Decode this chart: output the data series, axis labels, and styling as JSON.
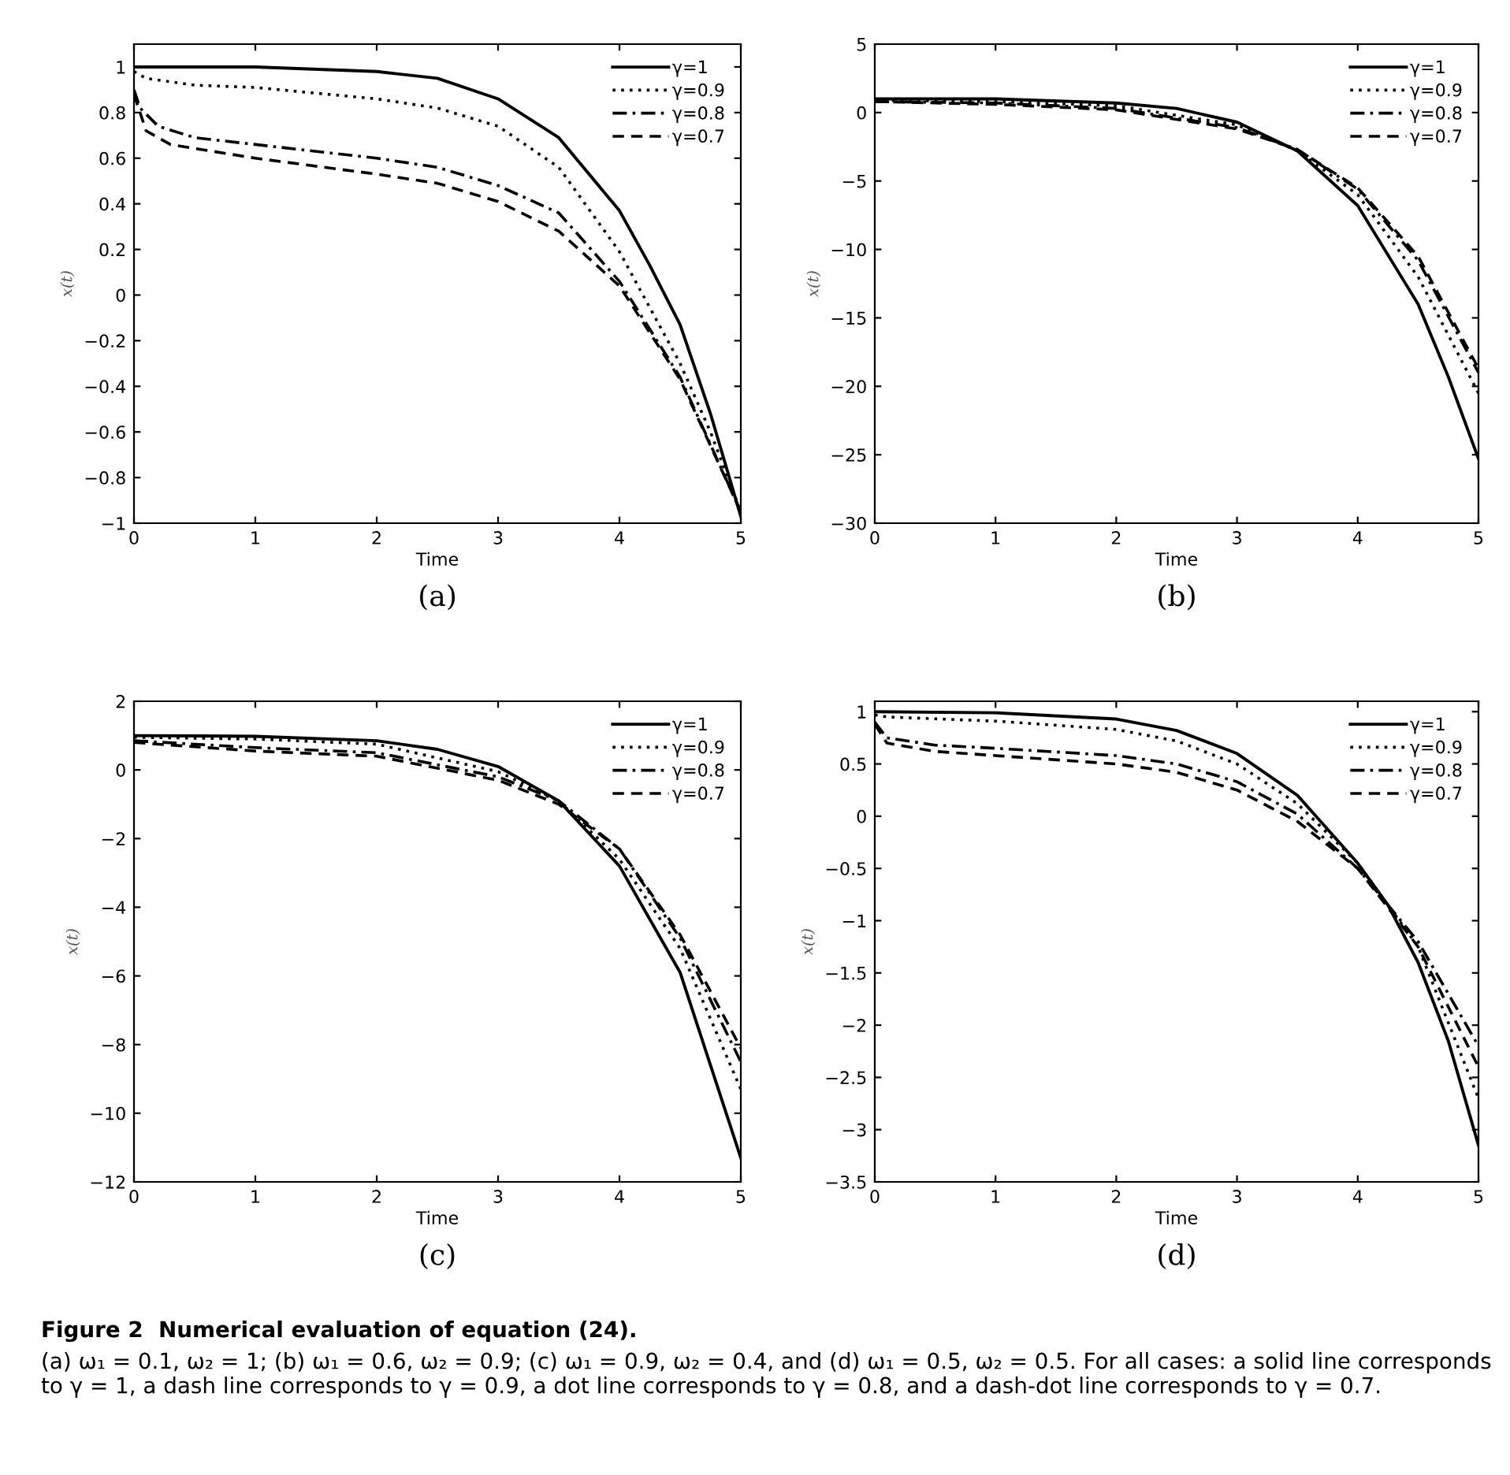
{
  "chart_data": [
    {
      "type": "line",
      "title": "(a)",
      "xlabel": "Time",
      "ylabel": "x(t)",
      "xlim": [
        0,
        5
      ],
      "ylim": [
        -1,
        1.1
      ],
      "xticks": [
        0,
        1,
        2,
        3,
        4,
        5
      ],
      "yticks": [
        -1,
        -0.8,
        -0.6,
        -0.4,
        -0.2,
        0,
        0.2,
        0.4,
        0.6,
        0.8,
        1
      ],
      "grid": false,
      "legend": "top right",
      "marker": "none",
      "series": [
        {
          "name": "γ=1",
          "color": "#000000",
          "line_style": "solid",
          "x": [
            0,
            1,
            2,
            2.5,
            3,
            3.5,
            4,
            4.25,
            4.5,
            4.75,
            5
          ],
          "values": [
            1,
            1,
            0.98,
            0.95,
            0.86,
            0.69,
            0.37,
            0.13,
            -0.13,
            -0.52,
            -0.97
          ]
        },
        {
          "name": "γ=0.9",
          "color": "#000000",
          "line_style": "dotted",
          "x": [
            0,
            0.1,
            0.5,
            1,
            2,
            2.5,
            3,
            3.5,
            4,
            4.5,
            4.75,
            5
          ],
          "values": [
            0.98,
            0.95,
            0.92,
            0.91,
            0.86,
            0.82,
            0.74,
            0.56,
            0.19,
            -0.3,
            -0.6,
            -0.95
          ]
        },
        {
          "name": "γ=0.8",
          "color": "#000000",
          "line_style": "dashdot",
          "x": [
            0,
            0.05,
            0.2,
            0.5,
            1,
            2,
            2.5,
            3,
            3.5,
            4,
            4.5,
            5
          ],
          "values": [
            0.9,
            0.82,
            0.74,
            0.69,
            0.66,
            0.6,
            0.56,
            0.48,
            0.36,
            0.06,
            -0.36,
            -0.95
          ]
        },
        {
          "name": "γ=0.7",
          "color": "#000000",
          "line_style": "dashed",
          "x": [
            0,
            0.1,
            0.3,
            1,
            2,
            2.5,
            3,
            3.5,
            4,
            4.5,
            5
          ],
          "values": [
            0.88,
            0.72,
            0.66,
            0.6,
            0.53,
            0.49,
            0.41,
            0.28,
            0.04,
            -0.37,
            -0.95
          ]
        }
      ]
    },
    {
      "type": "line",
      "title": "(b)",
      "xlabel": "Time",
      "ylabel": "x(t)",
      "xlim": [
        0,
        5
      ],
      "ylim": [
        -30,
        5
      ],
      "xticks": [
        0,
        1,
        2,
        3,
        4,
        5
      ],
      "yticks": [
        -30,
        -25,
        -20,
        -15,
        -10,
        -5,
        0,
        5
      ],
      "grid": false,
      "legend": "top right",
      "marker": "none",
      "series": [
        {
          "name": "γ=1",
          "color": "#000000",
          "line_style": "solid",
          "x": [
            0,
            1,
            2,
            2.5,
            3,
            3.5,
            4,
            4.5,
            4.75,
            5
          ],
          "values": [
            1,
            1,
            0.7,
            0.3,
            -0.7,
            -2.8,
            -6.8,
            -14,
            -19.3,
            -25.3
          ]
        },
        {
          "name": "γ=0.9",
          "color": "#000000",
          "line_style": "dotted",
          "x": [
            0,
            1,
            2,
            3,
            3.5,
            4,
            4.5,
            5
          ],
          "values": [
            0.9,
            0.8,
            0.5,
            -0.9,
            -2.8,
            -6,
            -12,
            -20.5
          ]
        },
        {
          "name": "γ=0.8",
          "color": "#000000",
          "line_style": "dashdot",
          "x": [
            0,
            1,
            2,
            3,
            3.5,
            4,
            4.5,
            5
          ],
          "values": [
            0.8,
            0.7,
            0.3,
            -1.1,
            -2.7,
            -5.6,
            -10.8,
            -19
          ]
        },
        {
          "name": "γ=0.7",
          "color": "#000000",
          "line_style": "dashed",
          "x": [
            0,
            1,
            2,
            3,
            3.5,
            4,
            4.5,
            5
          ],
          "values": [
            0.8,
            0.6,
            0.2,
            -1.2,
            -2.7,
            -5.5,
            -10.5,
            -18.7
          ]
        }
      ]
    },
    {
      "type": "line",
      "title": "(c)",
      "xlabel": "Time",
      "ylabel": "x(t)",
      "xlim": [
        0,
        5
      ],
      "ylim": [
        -12,
        2
      ],
      "xticks": [
        0,
        1,
        2,
        3,
        4,
        5
      ],
      "yticks": [
        -12,
        -10,
        -8,
        -6,
        -4,
        -2,
        0,
        2
      ],
      "grid": false,
      "legend": "top right",
      "marker": "none",
      "series": [
        {
          "name": "γ=1",
          "color": "#000000",
          "line_style": "solid",
          "x": [
            0,
            1,
            2,
            2.5,
            3,
            3.5,
            4,
            4.5,
            5
          ],
          "values": [
            1,
            0.98,
            0.85,
            0.6,
            0.1,
            -0.9,
            -2.8,
            -5.9,
            -11.3
          ]
        },
        {
          "name": "γ=0.9",
          "color": "#000000",
          "line_style": "dotted",
          "x": [
            0,
            1,
            2,
            3,
            3.5,
            4,
            4.5,
            5
          ],
          "values": [
            0.95,
            0.9,
            0.75,
            -0.05,
            -0.9,
            -2.6,
            -5.2,
            -9.3
          ]
        },
        {
          "name": "γ=0.8",
          "color": "#000000",
          "line_style": "dashdot",
          "x": [
            0,
            1,
            2,
            3,
            3.5,
            4,
            4.5,
            5
          ],
          "values": [
            0.85,
            0.65,
            0.5,
            -0.2,
            -0.9,
            -2.3,
            -4.9,
            -8.5
          ]
        },
        {
          "name": "γ=0.7",
          "color": "#000000",
          "line_style": "dashed",
          "x": [
            0,
            1,
            2,
            3,
            3.5,
            4,
            4.5,
            5
          ],
          "values": [
            0.8,
            0.55,
            0.4,
            -0.3,
            -1,
            -2.3,
            -4.8,
            -8.1
          ]
        }
      ]
    },
    {
      "type": "line",
      "title": "(d)",
      "xlabel": "Time",
      "ylabel": "x(t)",
      "xlim": [
        0,
        5
      ],
      "ylim": [
        -3.5,
        1.1
      ],
      "xticks": [
        0,
        1,
        2,
        3,
        4,
        5
      ],
      "yticks": [
        -3.5,
        -3,
        -2.5,
        -2,
        -1.5,
        -1,
        -0.5,
        0,
        0.5,
        1
      ],
      "grid": false,
      "legend": "top right",
      "marker": "none",
      "annotations": [
        "Figure 2  Numerical evaluation of equation (24).",
        "(a) ω₁ = 0.1, ω₂ = 1; (b) ω₁ = 0.6, ω₂ = 0.9; (c) ω₁ = 0.9, ω₂ = 0.4, and (d) ω₁ = 0.5, ω₂ = 0.5. For all cases: a solid line corresponds to γ = 1, a dash line corresponds to γ = 0.9, a dot line corresponds to γ = 0.8, and a dash-dot line corresponds to γ = 0.7."
      ],
      "series": [
        {
          "name": "γ=1",
          "color": "#000000",
          "line_style": "solid",
          "x": [
            0,
            1,
            2,
            2.5,
            3,
            3.5,
            4,
            4.25,
            4.5,
            4.75,
            5
          ],
          "values": [
            1,
            0.99,
            0.93,
            0.82,
            0.6,
            0.2,
            -0.45,
            -0.85,
            -1.4,
            -2.15,
            -3.15
          ]
        },
        {
          "name": "γ=0.9",
          "color": "#000000",
          "line_style": "dotted",
          "x": [
            0,
            0.1,
            1,
            2,
            2.5,
            3,
            3.5,
            4,
            4.5,
            5
          ],
          "values": [
            0.97,
            0.95,
            0.91,
            0.83,
            0.72,
            0.5,
            0.12,
            -0.45,
            -1.25,
            -2.7
          ]
        },
        {
          "name": "γ=0.8",
          "color": "#000000",
          "line_style": "dashdot",
          "x": [
            0,
            0.1,
            0.5,
            1,
            2,
            2.5,
            3,
            3.5,
            4,
            4.5,
            5
          ],
          "values": [
            0.9,
            0.75,
            0.68,
            0.65,
            0.58,
            0.5,
            0.33,
            0.02,
            -0.5,
            -1.2,
            -2.2
          ]
        },
        {
          "name": "γ=0.7",
          "color": "#000000",
          "line_style": "dashed",
          "x": [
            0,
            0.1,
            0.5,
            1,
            2,
            2.5,
            3,
            3.5,
            4,
            4.5,
            5
          ],
          "values": [
            0.88,
            0.7,
            0.62,
            0.58,
            0.5,
            0.42,
            0.25,
            -0.05,
            -0.5,
            -1.25,
            -2.4
          ]
        }
      ]
    }
  ]
}
